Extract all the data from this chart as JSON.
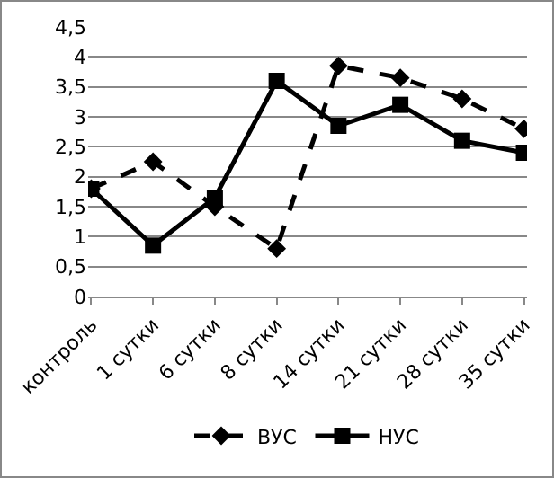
{
  "chart_data": {
    "type": "line",
    "categories": [
      "контроль",
      "1 сутки",
      "6 сутки",
      "8 сутки",
      "14 сутки",
      "21 сутки",
      "28 сутки",
      "35 сутки"
    ],
    "series": [
      {
        "name": "ВУС",
        "color": "#000000",
        "marker": "diamond",
        "line_style": "dashed",
        "values": [
          1.8,
          2.25,
          1.5,
          0.8,
          3.85,
          3.65,
          3.3,
          2.8
        ]
      },
      {
        "name": "НУС",
        "color": "#000000",
        "marker": "square",
        "line_style": "solid",
        "values": [
          1.8,
          0.85,
          1.65,
          3.6,
          2.85,
          3.2,
          2.6,
          2.4
        ]
      }
    ],
    "ylim": [
      0,
      4.5
    ],
    "yticks": [
      0,
      {
        "value": 0.5,
        "label": "0,5"
      },
      1,
      {
        "value": 1.5,
        "label": "1,5"
      },
      2,
      {
        "value": 2.5,
        "label": "2,5"
      },
      3,
      {
        "value": 3.5,
        "label": "3,5"
      },
      4,
      {
        "value": 4.5,
        "label": "4,5"
      }
    ],
    "grid": "y",
    "legend": "bottom"
  }
}
